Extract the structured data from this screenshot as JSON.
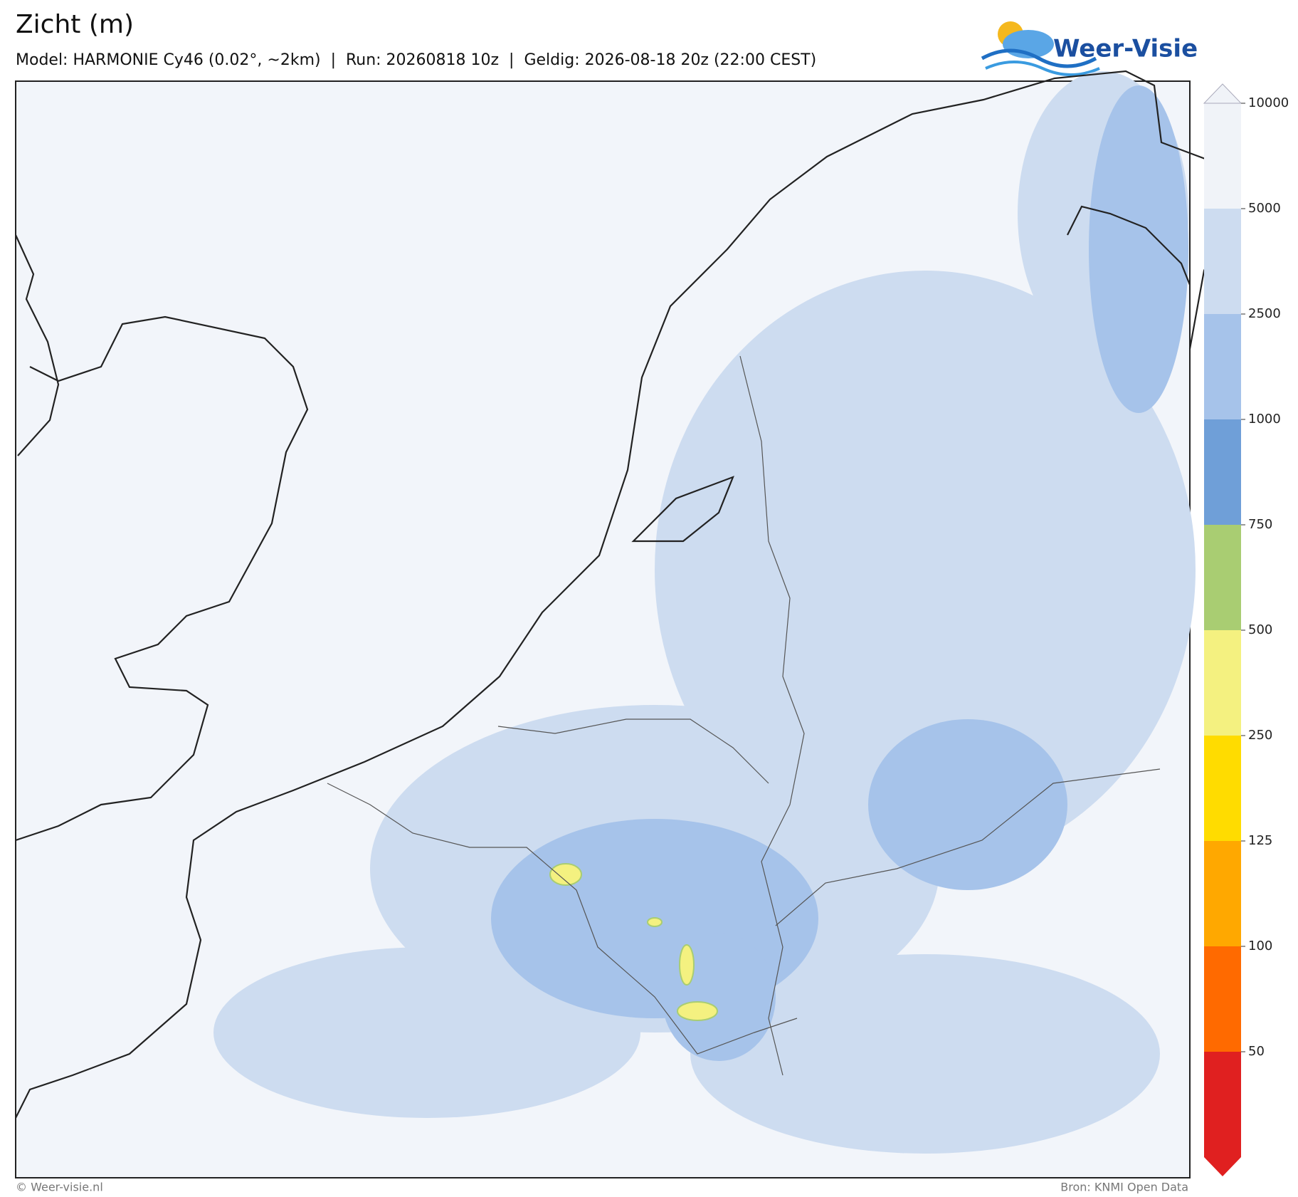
{
  "header": {
    "title": "Zicht (m)",
    "subtitle": "Model: HARMONIE Cy46 (0.02°, ~2km)  |  Run: 20260818 10z  |  Geldig: 2026-08-18 20z (22:00 CEST)"
  },
  "logo": {
    "text": "Weer-Visie"
  },
  "colorbar": {
    "ticks": [
      10000,
      5000,
      2500,
      1000,
      750,
      500,
      250,
      125,
      100,
      50
    ],
    "colors": [
      "#f0f3f8",
      "#cddcf0",
      "#a6c3ea",
      "#6f9fd8",
      "#a9cd72",
      "#f4f180",
      "#ffdc00",
      "#ffa800",
      "#ff6a00",
      "#e02020"
    ]
  },
  "footer": {
    "left": "© Weer-visie.nl",
    "right": "Bron: KNMI Open Data"
  }
}
